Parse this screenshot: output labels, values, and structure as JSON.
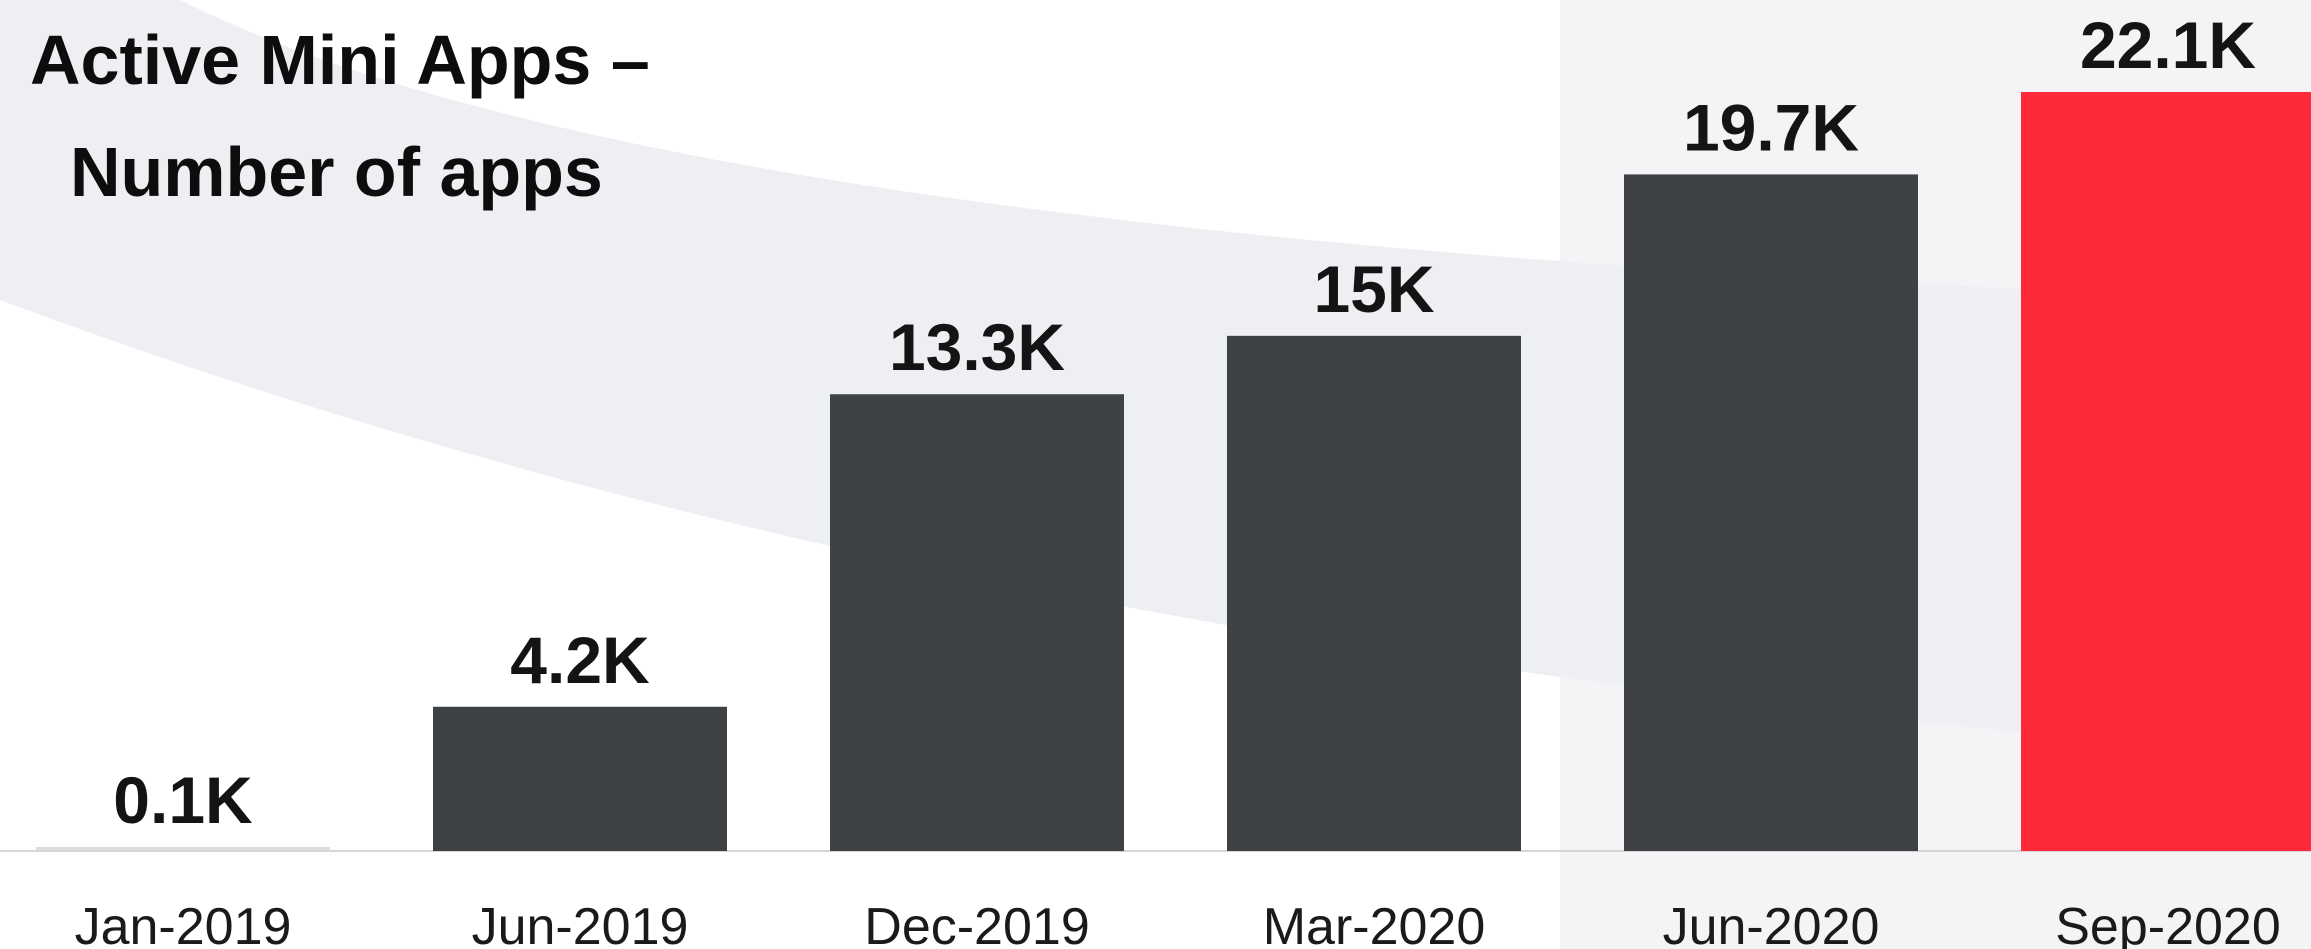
{
  "chart_data": {
    "type": "bar",
    "title_lines": [
      "Active Mini Apps –",
      "Number of apps"
    ],
    "xlabel": "",
    "ylabel": "",
    "categories": [
      "Jan-2019",
      "Jun-2019",
      "Dec-2019",
      "Mar-2020",
      "Jun-2020",
      "Sep-2020"
    ],
    "values": [
      0.1,
      4.2,
      13.3,
      15,
      19.7,
      22.1
    ],
    "value_labels": [
      "0.1K",
      "4.2K",
      "13.3K",
      "15K",
      "19.7K",
      "22.1K"
    ],
    "unit": "K",
    "ylim": [
      0,
      22.1
    ],
    "grid": false,
    "legend": "none",
    "colors": {
      "bar": "#3f4244",
      "highlight_bar": "#ff2a39",
      "first_bar": "#dcdcdc",
      "baseline": "#d6d6d6",
      "background_arc": "#eeeff3",
      "shaded_panel": "#f4f4f6"
    },
    "highlight_index": 5
  }
}
